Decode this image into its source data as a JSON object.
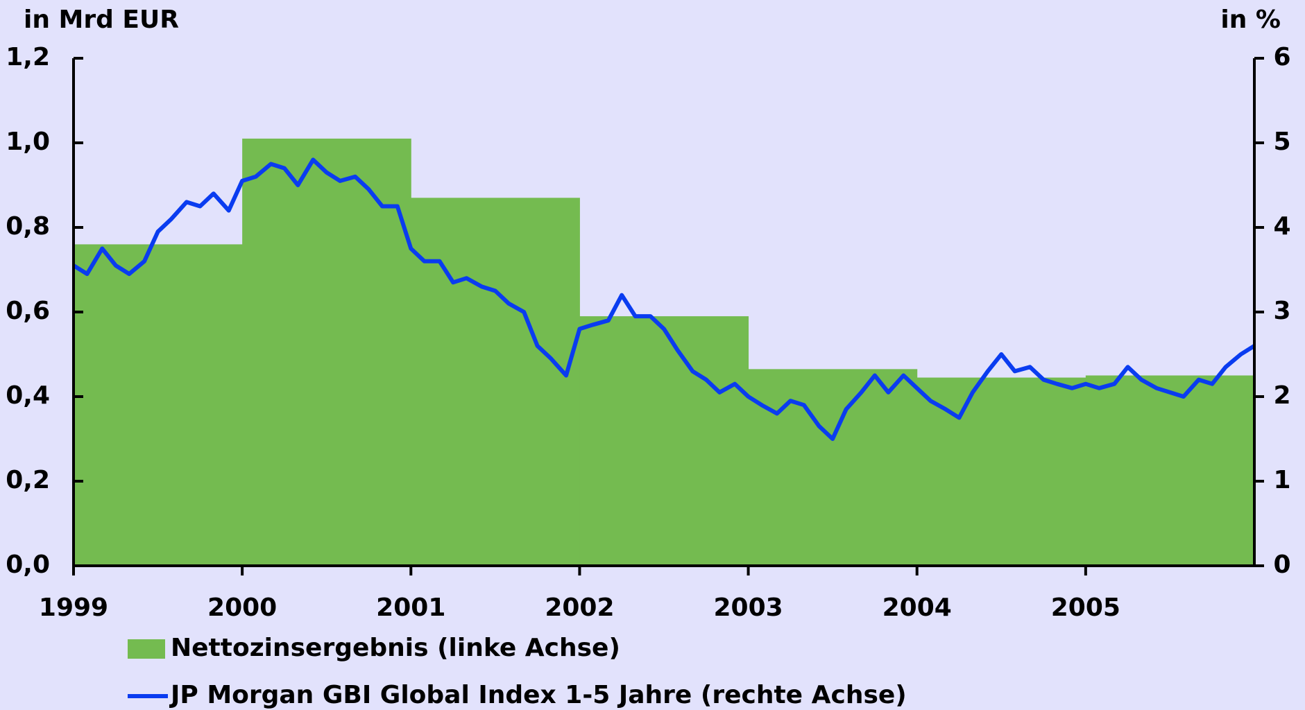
{
  "chart_data": {
    "type": "bar",
    "y_label": "in Mrd EUR",
    "y2_label": "in %",
    "xlim": [
      1999,
      2006
    ],
    "xticks": [
      1999,
      2000,
      2001,
      2002,
      2003,
      2004,
      2005
    ],
    "ylim": [
      0,
      1.2
    ],
    "yticks": [
      {
        "value": 0,
        "label": "0,0"
      },
      {
        "value": 0.2,
        "label": "0,2"
      },
      {
        "value": 0.4,
        "label": "0,4"
      },
      {
        "value": 0.6,
        "label": "0,6"
      },
      {
        "value": 0.8,
        "label": "0,8"
      },
      {
        "value": 1.0,
        "label": "1,0"
      },
      {
        "value": 1.2,
        "label": "1,2"
      }
    ],
    "y2lim": [
      0,
      6
    ],
    "y2ticks": [
      0,
      1,
      2,
      3,
      4,
      5,
      6
    ],
    "series": [
      {
        "name": "Nettozinsergebnis (linke Achse)",
        "type": "bar",
        "color": "#74bb50",
        "values": [
          0.76,
          1.01,
          0.87,
          0.59,
          0.465,
          0.445,
          0.45
        ]
      },
      {
        "name": "JP Morgan GBI Global Index 1-5 Jahre (rechte Achse)",
        "type": "line",
        "axis": "y2",
        "color": "#0a3cf0",
        "x": [
          1999.0,
          1999.08,
          1999.17,
          1999.25,
          1999.33,
          1999.42,
          1999.5,
          1999.58,
          1999.67,
          1999.75,
          1999.83,
          1999.92,
          2000.0,
          2000.08,
          2000.17,
          2000.25,
          2000.33,
          2000.42,
          2000.5,
          2000.58,
          2000.67,
          2000.75,
          2000.83,
          2000.92,
          2001.0,
          2001.08,
          2001.17,
          2001.25,
          2001.33,
          2001.42,
          2001.5,
          2001.58,
          2001.67,
          2001.75,
          2001.83,
          2001.92,
          2002.0,
          2002.08,
          2002.17,
          2002.25,
          2002.33,
          2002.42,
          2002.5,
          2002.58,
          2002.67,
          2002.75,
          2002.83,
          2002.92,
          2003.0,
          2003.08,
          2003.17,
          2003.25,
          2003.33,
          2003.42,
          2003.5,
          2003.58,
          2003.67,
          2003.75,
          2003.83,
          2003.92,
          2004.0,
          2004.08,
          2004.17,
          2004.25,
          2004.33,
          2004.42,
          2004.5,
          2004.58,
          2004.67,
          2004.75,
          2004.83,
          2004.92,
          2005.0,
          2005.08,
          2005.17,
          2005.25,
          2005.33,
          2005.42,
          2005.5,
          2005.58,
          2005.67,
          2005.75,
          2005.83,
          2005.92,
          2006.0
        ],
        "values": [
          3.55,
          3.45,
          3.75,
          3.55,
          3.45,
          3.6,
          3.95,
          4.1,
          4.3,
          4.25,
          4.4,
          4.2,
          4.55,
          4.6,
          4.75,
          4.7,
          4.5,
          4.8,
          4.65,
          4.55,
          4.6,
          4.45,
          4.25,
          4.25,
          3.75,
          3.6,
          3.6,
          3.35,
          3.4,
          3.3,
          3.25,
          3.1,
          3.0,
          2.6,
          2.45,
          2.25,
          2.8,
          2.85,
          2.9,
          3.2,
          2.95,
          2.95,
          2.8,
          2.55,
          2.3,
          2.2,
          2.05,
          2.15,
          2.0,
          1.9,
          1.8,
          1.95,
          1.9,
          1.65,
          1.5,
          1.85,
          2.05,
          2.25,
          2.05,
          2.25,
          2.1,
          1.95,
          1.85,
          1.75,
          2.05,
          2.3,
          2.5,
          2.3,
          2.35,
          2.2,
          2.15,
          2.1,
          2.15,
          2.1,
          2.15,
          2.35,
          2.2,
          2.1,
          2.05,
          2.0,
          2.2,
          2.15,
          2.35,
          2.5,
          2.6
        ]
      }
    ]
  }
}
